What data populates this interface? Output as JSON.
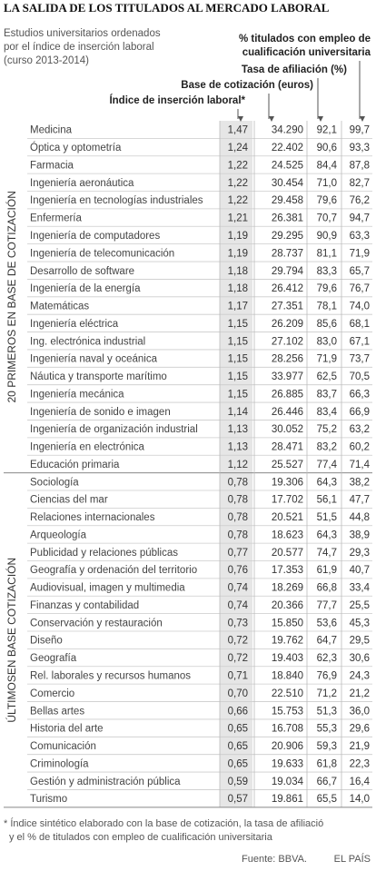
{
  "header": {
    "title": "LA SALIDA DE LOS TITULADOS AL MERCADO LABORAL",
    "subtitle": [
      "Estudios universitarios ordenados",
      "por el índice de inserción laboral",
      "(curso 2013-2014)"
    ]
  },
  "table": {
    "columns": {
      "pct": [
        "% titulados con empleo de",
        "cualificación universitaria"
      ],
      "afiliacion": "Tasa de afiliación (%)",
      "base": "Base de cotización (euros)",
      "indice": "Índice de inserción laboral*"
    },
    "groups": [
      {
        "label": "20 PRIMEROS EN BASE DE COTIZACIÓN",
        "rows": [
          [
            "Medicina",
            "1,47",
            "34.290",
            "92,1",
            "99,7"
          ],
          [
            "Óptica y optometría",
            "1,24",
            "22.402",
            "90,6",
            "93,3"
          ],
          [
            "Farmacia",
            "1,22",
            "24.525",
            "84,4",
            "87,8"
          ],
          [
            "Ingeniería aeronáutica",
            "1,22",
            "30.454",
            "71,0",
            "82,7"
          ],
          [
            "Ingeniería en tecnologías industriales",
            "1,22",
            "29.458",
            "79,6",
            "76,2"
          ],
          [
            "Enfermería",
            "1,21",
            "26.381",
            "70,7",
            "94,7"
          ],
          [
            "Ingeniería de computadores",
            "1,19",
            "29.295",
            "90,9",
            "63,3"
          ],
          [
            "Ingeniería de telecomunicación",
            "1,19",
            "28.737",
            "81,1",
            "71,9"
          ],
          [
            "Desarrollo de software",
            "1,18",
            "29.794",
            "83,3",
            "65,7"
          ],
          [
            "Ingeniería de la energía",
            "1,18",
            "26.412",
            "79,6",
            "76,7"
          ],
          [
            "Matemáticas",
            "1,17",
            "27.351",
            "78,1",
            "74,0"
          ],
          [
            "Ingeniería eléctrica",
            "1,15",
            "26.209",
            "85,6",
            "68,1"
          ],
          [
            "Ing. electrónica industrial",
            "1,15",
            "27.102",
            "83,0",
            "67,1"
          ],
          [
            "Ingeniería naval y oceánica",
            "1,15",
            "28.256",
            "71,9",
            "73,7"
          ],
          [
            "Náutica y transporte marítimo",
            "1,15",
            "33.977",
            "62,5",
            "70,5"
          ],
          [
            "Ingeniería mecánica",
            "1,15",
            "26.885",
            "83,7",
            "66,3"
          ],
          [
            "Ingeniería de sonido e imagen",
            "1,14",
            "26.446",
            "83,4",
            "66,9"
          ],
          [
            "Ingeniería de organización industrial",
            "1,13",
            "30.052",
            "75,2",
            "63,2"
          ],
          [
            "Ingeniería en electrónica",
            "1,13",
            "28.471",
            "83,2",
            "60,2"
          ],
          [
            "Educación primaria",
            "1,12",
            "25.527",
            "77,4",
            "71,4"
          ]
        ]
      },
      {
        "label": "ÚLTIMOSEN BASE COTIZACIÓN",
        "rows": [
          [
            "Sociología",
            "0,78",
            "19.306",
            "64,3",
            "38,2"
          ],
          [
            "Ciencias del mar",
            "0,78",
            "17.702",
            "56,1",
            "47,7"
          ],
          [
            "Relaciones internacionales",
            "0,78",
            "20.521",
            "51,5",
            "44,8"
          ],
          [
            "Arqueología",
            "0,78",
            "18.623",
            "64,3",
            "38,9"
          ],
          [
            "Publicidad y relaciones públicas",
            "0,77",
            "20.577",
            "74,7",
            "29,3"
          ],
          [
            "Geografía y ordenación del territorio",
            "0,76",
            "17.353",
            "61,9",
            "40,7"
          ],
          [
            "Audiovisual, imagen y multimedia",
            "0,74",
            "18.269",
            "66,8",
            "33,4"
          ],
          [
            "Finanzas y contabilidad",
            "0,74",
            "20.366",
            "77,7",
            "25,5"
          ],
          [
            "Conservación y restauración",
            "0,73",
            "15.850",
            "53,6",
            "45,3"
          ],
          [
            "Diseño",
            "0,72",
            "19.762",
            "64,7",
            "29,5"
          ],
          [
            "Geografía",
            "0,72",
            "19.403",
            "62,3",
            "30,6"
          ],
          [
            "Rel. laborales y recursos humanos",
            "0,71",
            "18.840",
            "76,9",
            "24,3"
          ],
          [
            "Comercio",
            "0,70",
            "22.510",
            "71,2",
            "21,2"
          ],
          [
            "Bellas artes",
            "0,66",
            "15.753",
            "51,3",
            "36,0"
          ],
          [
            "Historia del arte",
            "0,65",
            "16.708",
            "55,3",
            "29,6"
          ],
          [
            "Comunicación",
            "0,65",
            "20.906",
            "59,3",
            "21,9"
          ],
          [
            "Criminología",
            "0,65",
            "19.633",
            "61,8",
            "22,3"
          ],
          [
            "Gestión y administración pública",
            "0,59",
            "19.034",
            "66,7",
            "16,4"
          ],
          [
            "Turismo",
            "0,57",
            "19.861",
            "65,5",
            "14,0"
          ]
        ]
      }
    ]
  },
  "footer": {
    "note": [
      "* Índice sintético elaborado con la base de cotización, la tasa de afiliació",
      "y el % de titulados con empleo de cualificación universitaria"
    ],
    "source": "Fuente: BBVA.",
    "brand": "EL PAÍS"
  }
}
